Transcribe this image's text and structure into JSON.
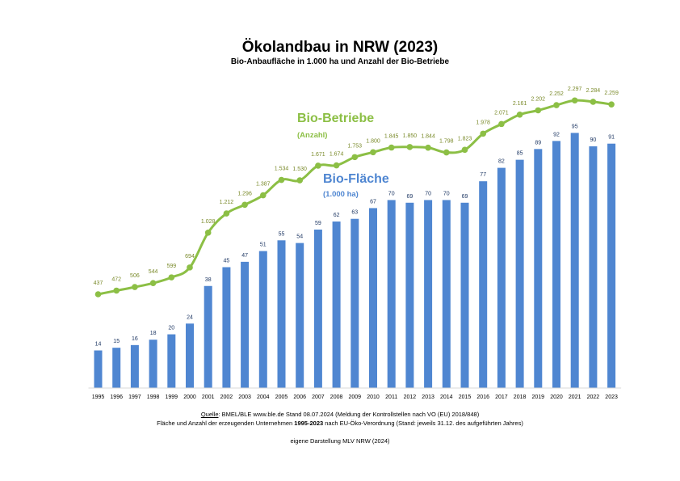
{
  "header": {
    "title": "Ökolandbau in NRW (2023)",
    "subtitle": "Bio-Anbaufläche in 1.000 ha und Anzahl der Bio-Betriebe"
  },
  "labels": {
    "betriebe_name": "Bio-Betriebe",
    "betriebe_unit": "(Anzahl)",
    "flaeche_name": "Bio-Fläche",
    "flaeche_unit": "(1.000 ha)"
  },
  "footer": {
    "source_label": "Quelle",
    "source_text": ": BMEL/BLE www.ble.de Stand 08.07.2024 (Meldung der Kontrollstellen nach VO (EU) 2018/848)",
    "note_pre": "Fläche und Anzahl der erzeugenden Unternehmen ",
    "note_bold": "1995-2023",
    "note_post": " nach EU-Öko-Verordnung (Stand: jeweils 31.12. des aufgeführten Jahres)",
    "credit": "eigene Darstellung MLV NRW (2024)"
  },
  "colors": {
    "bars": "#4f86d1",
    "line": "#8cbf45",
    "bar_labels": "#1f3864",
    "line_labels": "#7a8a2a"
  },
  "chart_data": {
    "type": "bar",
    "categories": [
      "1995",
      "1996",
      "1997",
      "1998",
      "1999",
      "2000",
      "2001",
      "2002",
      "2003",
      "2004",
      "2005",
      "2006",
      "2007",
      "2008",
      "2009",
      "2010",
      "2011",
      "2012",
      "2013",
      "2014",
      "2015",
      "2016",
      "2017",
      "2018",
      "2019",
      "2020",
      "2021",
      "2022",
      "2023"
    ],
    "series": [
      {
        "name": "Bio-Fläche",
        "type": "bar",
        "values": [
          14,
          15,
          16,
          18,
          20,
          24,
          38,
          45,
          47,
          51,
          55,
          54,
          59,
          62,
          63,
          67,
          70,
          69,
          70,
          70,
          69,
          77,
          82,
          85,
          89,
          92,
          95,
          90,
          91
        ],
        "labels": [
          "14",
          "15",
          "16",
          "18",
          "20",
          "24",
          "38",
          "45",
          "47",
          "51",
          "55",
          "54",
          "59",
          "62",
          "63",
          "67",
          "70",
          "69",
          "70",
          "70",
          "69",
          "77",
          "82",
          "85",
          "89",
          "92",
          "95",
          "90",
          "91"
        ]
      },
      {
        "name": "Bio-Betriebe",
        "type": "line",
        "values": [
          437,
          472,
          506,
          544,
          599,
          694,
          1028,
          1212,
          1296,
          1387,
          1534,
          1530,
          1671,
          1674,
          1753,
          1800,
          1845,
          1850,
          1844,
          1798,
          1823,
          1978,
          2071,
          2161,
          2202,
          2252,
          2297,
          2284,
          2259
        ],
        "labels": [
          "437",
          "472",
          "506",
          "544",
          "599",
          "694",
          "1.028",
          "1.212",
          "1.296",
          "1.387",
          "1.534",
          "1.530",
          "1.671",
          "1.674",
          "1.753",
          "1.800",
          "1.845",
          "1.850",
          "1.844",
          "1.798",
          "1.823",
          "1.978",
          "2.071",
          "2.161",
          "2.202",
          "2.252",
          "2.297",
          "2.284",
          "2.259"
        ]
      }
    ]
  }
}
